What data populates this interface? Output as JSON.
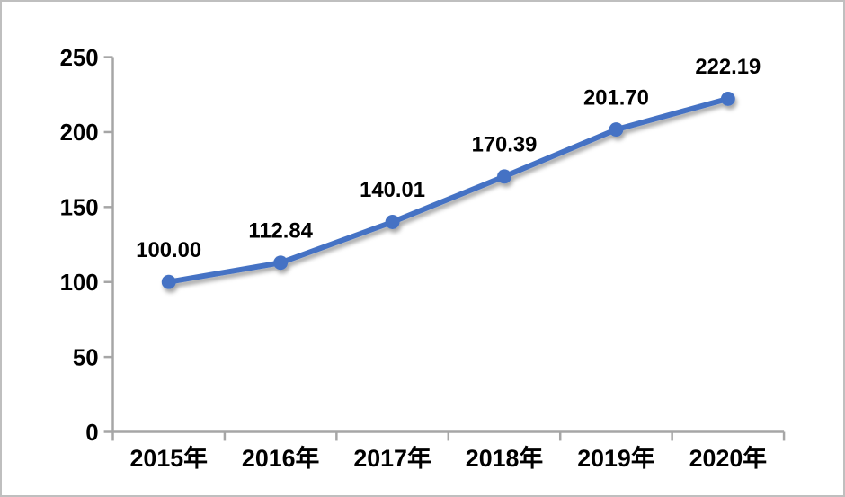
{
  "chart_data": {
    "type": "line",
    "categories": [
      "2015年",
      "2016年",
      "2017年",
      "2018年",
      "2019年",
      "2020年"
    ],
    "values": [
      100.0,
      112.84,
      140.01,
      170.39,
      201.7,
      222.19
    ],
    "data_labels": [
      "100.00",
      "112.84",
      "140.01",
      "170.39",
      "201.70",
      "222.19"
    ],
    "y_ticks": [
      0,
      50,
      100,
      150,
      200,
      250
    ],
    "ylim": [
      0,
      250
    ],
    "title": "",
    "xlabel": "",
    "ylabel": "",
    "grid": "off",
    "legend": "none",
    "marker": "circle",
    "colors": {
      "series": "#4472C4",
      "axis": "#A6A6A6",
      "text": "#000000",
      "background": "#FFFFFF",
      "frame_border": "#BFBFBF"
    }
  }
}
